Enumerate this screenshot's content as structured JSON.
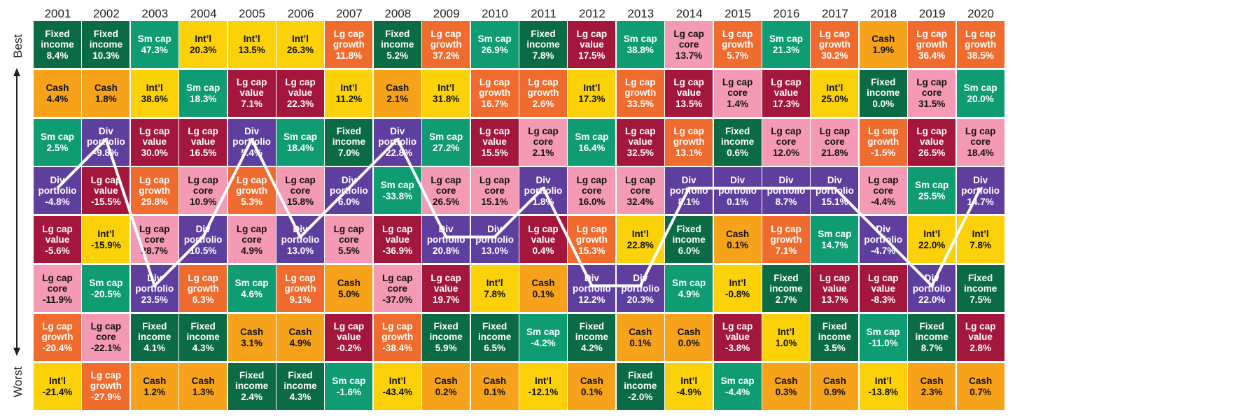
{
  "chart_data": {
    "type": "table",
    "title": "",
    "ylabel_top": "Best",
    "ylabel_bottom": "Worst",
    "highlight_category": "Div portfolio",
    "colors": {
      "Fixed income": "#0b6b45",
      "Cash": "#f6a21b",
      "Sm cap": "#109c72",
      "Int'l": "#fbd10a",
      "Lg cap value": "#a3173d",
      "Lg cap growth": "#ef6c2e",
      "Lg cap core": "#f49ab4",
      "Div portfolio": "#5f3f9e"
    },
    "text_colors": {
      "Fixed income": "#ffffff",
      "Cash": "#111111",
      "Sm cap": "#ffffff",
      "Int'l": "#111111",
      "Lg cap value": "#ffffff",
      "Lg cap growth": "#ffffff",
      "Lg cap core": "#111111",
      "Div portfolio": "#ffffff"
    },
    "labels": {
      "Fixed income": "Fixed\nincome",
      "Cash": "Cash",
      "Sm cap": "Sm cap",
      "Int'l": "Int’l",
      "Lg cap value": "Lg cap\nvalue",
      "Lg cap growth": "Lg cap\ngrowth",
      "Lg cap core": "Lg cap\ncore",
      "Div portfolio": "Div\nportfolio"
    },
    "years": [
      {
        "year": "2001",
        "ranks": [
          {
            "category": "Fixed income",
            "value": "8.4%"
          },
          {
            "category": "Cash",
            "value": "4.4%"
          },
          {
            "category": "Sm cap",
            "value": "2.5%"
          },
          {
            "category": "Div portfolio",
            "value": "-4.8%"
          },
          {
            "category": "Lg cap value",
            "value": "-5.6%"
          },
          {
            "category": "Lg cap core",
            "value": "-11.9%"
          },
          {
            "category": "Lg cap growth",
            "value": "-20.4%"
          },
          {
            "category": "Int'l",
            "value": "-21.4%"
          }
        ]
      },
      {
        "year": "2002",
        "ranks": [
          {
            "category": "Fixed income",
            "value": "10.3%"
          },
          {
            "category": "Cash",
            "value": "1.8%"
          },
          {
            "category": "Div portfolio",
            "value": "-9.8%"
          },
          {
            "category": "Lg cap value",
            "value": "-15.5%"
          },
          {
            "category": "Int'l",
            "value": "-15.9%"
          },
          {
            "category": "Sm cap",
            "value": "-20.5%"
          },
          {
            "category": "Lg cap core",
            "value": "-22.1%"
          },
          {
            "category": "Lg cap growth",
            "value": "-27.9%"
          }
        ]
      },
      {
        "year": "2003",
        "ranks": [
          {
            "category": "Sm cap",
            "value": "47.3%"
          },
          {
            "category": "Int'l",
            "value": "38.6%"
          },
          {
            "category": "Lg cap value",
            "value": "30.0%"
          },
          {
            "category": "Lg cap growth",
            "value": "29.8%"
          },
          {
            "category": "Lg cap core",
            "value": "28.7%"
          },
          {
            "category": "Div portfolio",
            "value": "23.5%"
          },
          {
            "category": "Fixed income",
            "value": "4.1%"
          },
          {
            "category": "Cash",
            "value": "1.2%"
          }
        ]
      },
      {
        "year": "2004",
        "ranks": [
          {
            "category": "Int'l",
            "value": "20.3%"
          },
          {
            "category": "Sm cap",
            "value": "18.3%"
          },
          {
            "category": "Lg cap value",
            "value": "16.5%"
          },
          {
            "category": "Lg cap core",
            "value": "10.9%"
          },
          {
            "category": "Div portfolio",
            "value": "10.5%"
          },
          {
            "category": "Lg cap growth",
            "value": "6.3%"
          },
          {
            "category": "Fixed income",
            "value": "4.3%"
          },
          {
            "category": "Cash",
            "value": "1.3%"
          }
        ]
      },
      {
        "year": "2005",
        "ranks": [
          {
            "category": "Int'l",
            "value": "13.5%"
          },
          {
            "category": "Lg cap value",
            "value": "7.1%"
          },
          {
            "category": "Div portfolio",
            "value": "5.4%"
          },
          {
            "category": "Lg cap growth",
            "value": "5.3%"
          },
          {
            "category": "Lg cap core",
            "value": "4.9%"
          },
          {
            "category": "Sm cap",
            "value": "4.6%"
          },
          {
            "category": "Cash",
            "value": "3.1%"
          },
          {
            "category": "Fixed income",
            "value": "2.4%"
          }
        ]
      },
      {
        "year": "2006",
        "ranks": [
          {
            "category": "Int'l",
            "value": "26.3%"
          },
          {
            "category": "Lg cap value",
            "value": "22.3%"
          },
          {
            "category": "Sm cap",
            "value": "18.4%"
          },
          {
            "category": "Lg cap core",
            "value": "15.8%"
          },
          {
            "category": "Div portfolio",
            "value": "13.0%"
          },
          {
            "category": "Lg cap growth",
            "value": "9.1%"
          },
          {
            "category": "Cash",
            "value": "4.9%"
          },
          {
            "category": "Fixed income",
            "value": "4.3%"
          }
        ]
      },
      {
        "year": "2007",
        "ranks": [
          {
            "category": "Lg cap growth",
            "value": "11.8%"
          },
          {
            "category": "Int'l",
            "value": "11.2%"
          },
          {
            "category": "Fixed income",
            "value": "7.0%"
          },
          {
            "category": "Div portfolio",
            "value": "6.0%"
          },
          {
            "category": "Lg cap core",
            "value": "5.5%"
          },
          {
            "category": "Cash",
            "value": "5.0%"
          },
          {
            "category": "Lg cap value",
            "value": "-0.2%"
          },
          {
            "category": "Sm cap",
            "value": "-1.6%"
          }
        ]
      },
      {
        "year": "2008",
        "ranks": [
          {
            "category": "Fixed income",
            "value": "5.2%"
          },
          {
            "category": "Cash",
            "value": "2.1%"
          },
          {
            "category": "Div portfolio",
            "value": "-22.8%"
          },
          {
            "category": "Sm cap",
            "value": "-33.8%"
          },
          {
            "category": "Lg cap value",
            "value": "-36.9%"
          },
          {
            "category": "Lg cap core",
            "value": "-37.0%"
          },
          {
            "category": "Lg cap growth",
            "value": "-38.4%"
          },
          {
            "category": "Int'l",
            "value": "-43.4%"
          }
        ]
      },
      {
        "year": "2009",
        "ranks": [
          {
            "category": "Lg cap growth",
            "value": "37.2%"
          },
          {
            "category": "Int'l",
            "value": "31.8%"
          },
          {
            "category": "Sm cap",
            "value": "27.2%"
          },
          {
            "category": "Lg cap core",
            "value": "26.5%"
          },
          {
            "category": "Div portfolio",
            "value": "20.8%"
          },
          {
            "category": "Lg cap value",
            "value": "19.7%"
          },
          {
            "category": "Fixed income",
            "value": "5.9%"
          },
          {
            "category": "Cash",
            "value": "0.2%"
          }
        ]
      },
      {
        "year": "2010",
        "ranks": [
          {
            "category": "Sm cap",
            "value": "26.9%"
          },
          {
            "category": "Lg cap growth",
            "value": "16.7%"
          },
          {
            "category": "Lg cap value",
            "value": "15.5%"
          },
          {
            "category": "Lg cap core",
            "value": "15.1%"
          },
          {
            "category": "Div portfolio",
            "value": "13.0%"
          },
          {
            "category": "Int'l",
            "value": "7.8%"
          },
          {
            "category": "Fixed income",
            "value": "6.5%"
          },
          {
            "category": "Cash",
            "value": "0.1%"
          }
        ]
      },
      {
        "year": "2011",
        "ranks": [
          {
            "category": "Fixed income",
            "value": "7.8%"
          },
          {
            "category": "Lg cap growth",
            "value": "2.6%"
          },
          {
            "category": "Lg cap core",
            "value": "2.1%"
          },
          {
            "category": "Div portfolio",
            "value": "1.8%"
          },
          {
            "category": "Lg cap value",
            "value": "0.4%"
          },
          {
            "category": "Cash",
            "value": "0.1%"
          },
          {
            "category": "Sm cap",
            "value": "-4.2%"
          },
          {
            "category": "Int'l",
            "value": "-12.1%"
          }
        ]
      },
      {
        "year": "2012",
        "ranks": [
          {
            "category": "Lg cap value",
            "value": "17.5%"
          },
          {
            "category": "Int'l",
            "value": "17.3%"
          },
          {
            "category": "Sm cap",
            "value": "16.4%"
          },
          {
            "category": "Lg cap core",
            "value": "16.0%"
          },
          {
            "category": "Lg cap growth",
            "value": "15.3%"
          },
          {
            "category": "Div portfolio",
            "value": "12.2%"
          },
          {
            "category": "Fixed income",
            "value": "4.2%"
          },
          {
            "category": "Cash",
            "value": "0.1%"
          }
        ]
      },
      {
        "year": "2013",
        "ranks": [
          {
            "category": "Sm cap",
            "value": "38.8%"
          },
          {
            "category": "Lg cap growth",
            "value": "33.5%"
          },
          {
            "category": "Lg cap value",
            "value": "32.5%"
          },
          {
            "category": "Lg cap core",
            "value": "32.4%"
          },
          {
            "category": "Int'l",
            "value": "22.8%"
          },
          {
            "category": "Div portfolio",
            "value": "20.3%"
          },
          {
            "category": "Cash",
            "value": "0.1%"
          },
          {
            "category": "Fixed income",
            "value": "-2.0%"
          }
        ]
      },
      {
        "year": "2014",
        "ranks": [
          {
            "category": "Lg cap core",
            "value": "13.7%"
          },
          {
            "category": "Lg cap value",
            "value": "13.5%"
          },
          {
            "category": "Lg cap growth",
            "value": "13.1%"
          },
          {
            "category": "Div portfolio",
            "value": "8.1%"
          },
          {
            "category": "Fixed income",
            "value": "6.0%"
          },
          {
            "category": "Sm cap",
            "value": "4.9%"
          },
          {
            "category": "Cash",
            "value": "0.0%"
          },
          {
            "category": "Int'l",
            "value": "-4.9%"
          }
        ]
      },
      {
        "year": "2015",
        "ranks": [
          {
            "category": "Lg cap growth",
            "value": "5.7%"
          },
          {
            "category": "Lg cap core",
            "value": "1.4%"
          },
          {
            "category": "Fixed income",
            "value": "0.6%"
          },
          {
            "category": "Div portfolio",
            "value": "0.1%"
          },
          {
            "category": "Cash",
            "value": "0.1%"
          },
          {
            "category": "Int'l",
            "value": "-0.8%"
          },
          {
            "category": "Lg cap value",
            "value": "-3.8%"
          },
          {
            "category": "Sm cap",
            "value": "-4.4%"
          }
        ]
      },
      {
        "year": "2016",
        "ranks": [
          {
            "category": "Sm cap",
            "value": "21.3%"
          },
          {
            "category": "Lg cap value",
            "value": "17.3%"
          },
          {
            "category": "Lg cap core",
            "value": "12.0%"
          },
          {
            "category": "Div portfolio",
            "value": "8.7%"
          },
          {
            "category": "Lg cap growth",
            "value": "7.1%"
          },
          {
            "category": "Fixed income",
            "value": "2.7%"
          },
          {
            "category": "Int'l",
            "value": "1.0%"
          },
          {
            "category": "Cash",
            "value": "0.3%"
          }
        ]
      },
      {
        "year": "2017",
        "ranks": [
          {
            "category": "Lg cap growth",
            "value": "30.2%"
          },
          {
            "category": "Int'l",
            "value": "25.0%"
          },
          {
            "category": "Lg cap core",
            "value": "21.8%"
          },
          {
            "category": "Div portfolio",
            "value": "15.1%"
          },
          {
            "category": "Sm cap",
            "value": "14.7%"
          },
          {
            "category": "Lg cap value",
            "value": "13.7%"
          },
          {
            "category": "Fixed income",
            "value": "3.5%"
          },
          {
            "category": "Cash",
            "value": "0.9%"
          }
        ]
      },
      {
        "year": "2018",
        "ranks": [
          {
            "category": "Cash",
            "value": "1.9%"
          },
          {
            "category": "Fixed income",
            "value": "0.0%"
          },
          {
            "category": "Lg cap growth",
            "value": "-1.5%"
          },
          {
            "category": "Lg cap core",
            "value": "-4.4%"
          },
          {
            "category": "Div portfolio",
            "value": "-4.7%"
          },
          {
            "category": "Lg cap value",
            "value": "-8.3%"
          },
          {
            "category": "Sm cap",
            "value": "-11.0%"
          },
          {
            "category": "Int'l",
            "value": "-13.8%"
          }
        ]
      },
      {
        "year": "2019",
        "ranks": [
          {
            "category": "Lg cap growth",
            "value": "36.4%"
          },
          {
            "category": "Lg cap core",
            "value": "31.5%"
          },
          {
            "category": "Lg cap value",
            "value": "26.5%"
          },
          {
            "category": "Sm cap",
            "value": "25.5%"
          },
          {
            "category": "Int'l",
            "value": "22.0%"
          },
          {
            "category": "Div portfolio",
            "value": "22.0%"
          },
          {
            "category": "Fixed income",
            "value": "8.7%"
          },
          {
            "category": "Cash",
            "value": "2.3%"
          }
        ]
      },
      {
        "year": "2020",
        "ranks": [
          {
            "category": "Lg cap growth",
            "value": "38.5%"
          },
          {
            "category": "Sm cap",
            "value": "20.0%"
          },
          {
            "category": "Lg cap core",
            "value": "18.4%"
          },
          {
            "category": "Div portfolio",
            "value": "14.7%"
          },
          {
            "category": "Int'l",
            "value": "7.8%"
          },
          {
            "category": "Fixed income",
            "value": "7.5%"
          },
          {
            "category": "Lg cap value",
            "value": "2.8%"
          },
          {
            "category": "Cash",
            "value": "0.7%"
          }
        ]
      }
    ]
  }
}
